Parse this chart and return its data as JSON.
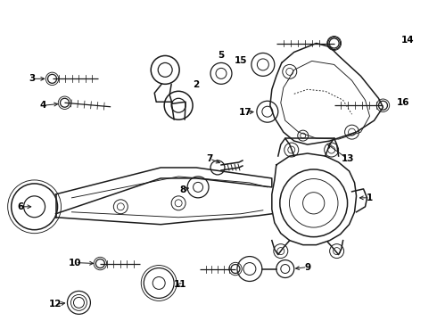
{
  "background_color": "#ffffff",
  "line_color": "#1a1a1a",
  "label_color": "#000000",
  "figsize": [
    4.9,
    3.6
  ],
  "dpi": 100,
  "label_fontsize": 7.5,
  "lw_main": 1.1,
  "lw_thin": 0.65,
  "lw_bolt": 0.9
}
